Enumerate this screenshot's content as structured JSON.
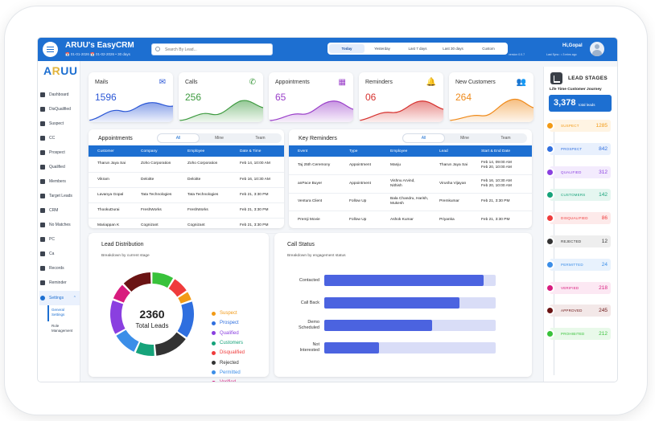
{
  "header": {
    "app_title": "ARUU's EasyCRM",
    "date_range": "📅 01-01-2026  📅 01-02-2026  •  30 days",
    "search_placeholder": "Search By Lead...",
    "periods": [
      "Today",
      "Yesterday",
      "Last 7 days",
      "Last 30 days",
      "Custom"
    ],
    "active_period": "Today",
    "version": "version 0.0.7",
    "greeting": "Hi,Gopal",
    "last_sync": "Last Sync : • 3 mins ago"
  },
  "sidebar": {
    "logo_a": "A",
    "logo_r": "R",
    "logo_uu": "UU",
    "items": [
      "Dashboard",
      "DisQualified",
      "Suspect",
      "CC",
      "Prospect",
      "Qualified",
      "Members",
      "Target Leads",
      "CRM",
      "No Matches",
      "PC",
      "Ca",
      "Records",
      "Reminder"
    ],
    "settings": "Settings",
    "sub_items": [
      "General Settings",
      "Role Management"
    ]
  },
  "stats": [
    {
      "label": "Mails",
      "value": "1596",
      "color": "#2b57d6",
      "icon": "mail-icon",
      "glyph": "✉"
    },
    {
      "label": "Calls",
      "value": "256",
      "color": "#3d9a3f",
      "icon": "phone-icon",
      "glyph": "✆"
    },
    {
      "label": "Appointments",
      "value": "65",
      "color": "#9a3fc9",
      "icon": "calendar-icon",
      "glyph": "▦"
    },
    {
      "label": "Reminders",
      "value": "06",
      "color": "#d6322f",
      "icon": "bell-icon",
      "glyph": "🔔"
    },
    {
      "label": "New Customers",
      "value": "264",
      "color": "#ef8a1a",
      "icon": "users-icon",
      "glyph": "👥"
    }
  ],
  "appointments": {
    "title": "Appointments",
    "tabs": [
      "All",
      "Mine",
      "Team"
    ],
    "columns": [
      "Customer",
      "Company",
      "Employee",
      "Date & Time"
    ],
    "rows": [
      [
        "Tharun Jaya Sai",
        "Zoho Corporation",
        "Zoho Corporation",
        "Feb 14, 10:00 AM"
      ],
      [
        "Vikram",
        "Deloitte",
        "Deloitte",
        "Feb 16, 10:30 AM"
      ],
      [
        "Lavanya Gopal",
        "Tata Technologies",
        "Tata Technologies",
        "Feb 21, 3:30 PM"
      ],
      [
        "ThookuDurai",
        "FreshWorks",
        "FreshWorks",
        "Feb 21, 3:30 PM"
      ],
      [
        "Mariappan K",
        "Cognizant",
        "Cognizant",
        "Feb 21, 3:30 PM"
      ]
    ]
  },
  "reminders": {
    "title": "Key Reminders",
    "tabs": [
      "All",
      "Mine",
      "Team"
    ],
    "columns": [
      "Event",
      "Type",
      "Employee",
      "Lead",
      "Start & End Date"
    ],
    "rows": [
      [
        "Taj 25th Ceremony",
        "Appointment",
        "Manju",
        "Tharun Jaya Sai",
        "Feb 14, 09:00 AM\nFeb 20, 10:00 AM"
      ],
      [
        "anPace Buyer",
        "Appointment",
        "Vishnu Arvind,\nNithish",
        "Virusha Vijayan",
        "Feb 16, 10:30 AM\nFeb 20, 10:00 AM"
      ],
      [
        "Ventura Client",
        "Follow Up",
        "Bala Chandru, Harish,\nMukesh",
        "Premkumar",
        "Feb 21, 3:30 PM"
      ],
      [
        "Premji Movie",
        "Follow Up",
        "Ashok Kumar",
        "Priyanka",
        "Feb 21, 3:30 PM"
      ]
    ]
  },
  "lead_distribution": {
    "title": "Lead Distribution",
    "subtitle": "Breakdown by current stage",
    "total": "2360",
    "total_label": "Total Leads",
    "legend": [
      {
        "name": "Suspect",
        "color": "#f29a16"
      },
      {
        "name": "Prospect",
        "color": "#2f6fdf"
      },
      {
        "name": "Qualified",
        "color": "#8a3fe0"
      },
      {
        "name": "Customers",
        "color": "#16a37a"
      },
      {
        "name": "Disqualified",
        "color": "#ef3b3b"
      },
      {
        "name": "Rejected",
        "color": "#333333"
      },
      {
        "name": "Permitted",
        "color": "#3b8ee8"
      },
      {
        "name": "Verified",
        "color": "#d81b7e"
      },
      {
        "name": "Approved",
        "color": "#6b1414"
      },
      {
        "name": "Prohibited",
        "color": "#39c23b"
      }
    ]
  },
  "call_status": {
    "title": "Call Status",
    "subtitle": "Breakdown by engagement status",
    "bars": [
      {
        "label": "Contacted",
        "value": 0.93
      },
      {
        "label": "Call Back",
        "value": 0.79
      },
      {
        "label": "Demo\nScheduled",
        "value": 0.63
      },
      {
        "label": "Not\nInterested",
        "value": 0.32
      }
    ]
  },
  "lead_stages": {
    "title": "LEAD STAGES",
    "subtitle": "Life Time Customer Journey",
    "total": "3,378",
    "total_label": "total leads",
    "stages": [
      {
        "name": "SUSPECT",
        "count": "1285",
        "color": "#f29a16",
        "bg": "#fff4e3"
      },
      {
        "name": "PROSPECT",
        "count": "842",
        "color": "#2f6fdf",
        "bg": "#e8f0fd"
      },
      {
        "name": "QUALIFIED",
        "count": "312",
        "color": "#8a3fe0",
        "bg": "#f3ebfd"
      },
      {
        "name": "CUSTOMERS",
        "count": "142",
        "color": "#16a37a",
        "bg": "#e5f6f0"
      },
      {
        "name": "DISQUALIFIED",
        "count": "86",
        "color": "#ef3b3b",
        "bg": "#fdeaea"
      },
      {
        "name": "REJECTED",
        "count": "12",
        "color": "#333333",
        "bg": "#eeeeee"
      },
      {
        "name": "PERMITTED",
        "count": "24",
        "color": "#3b8ee8",
        "bg": "#e8f2fd"
      },
      {
        "name": "VERIFIED",
        "count": "218",
        "color": "#d81b7e",
        "bg": "#fce8f3"
      },
      {
        "name": "APPROVED",
        "count": "245",
        "color": "#6b1414",
        "bg": "#f3e8e8"
      },
      {
        "name": "PROHIBITED",
        "count": "212",
        "color": "#39c23b",
        "bg": "#e9f9ea"
      }
    ]
  }
}
